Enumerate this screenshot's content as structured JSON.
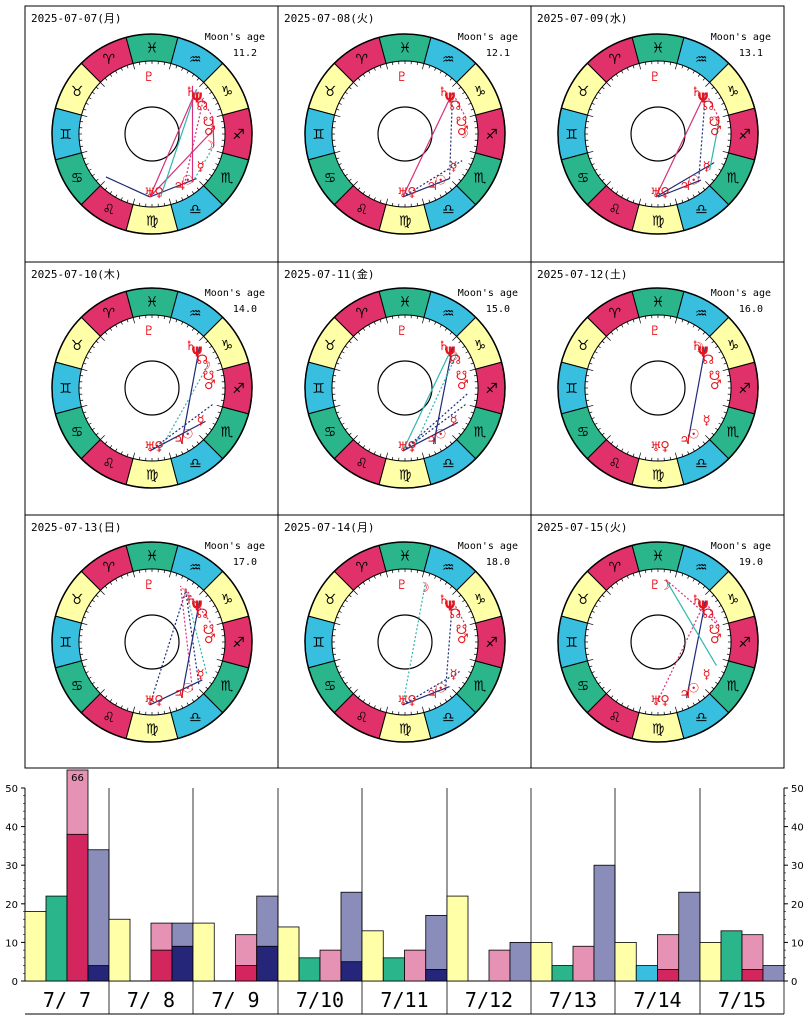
{
  "charts": [
    {
      "date": "2025-07-07(月)",
      "age_label": "Moon's age",
      "age": "11.2",
      "moon": 244,
      "aspects": [
        [
          163,
          118,
          "#1e2a7a",
          "solid"
        ],
        [
          163,
          210,
          "#2a2f80",
          "solid"
        ],
        [
          163,
          300,
          "#d6307a",
          "solid"
        ],
        [
          163,
          260,
          "#d6307a",
          "solid"
        ],
        [
          173,
          300,
          "#2fb6b0",
          "solid"
        ],
        [
          205,
          244,
          "#2fb6b0",
          "dash"
        ],
        [
          270,
          244,
          "#d6307a",
          "solid"
        ],
        [
          270,
          300,
          "#d6307a",
          "dash"
        ],
        [
          205,
          305,
          "#d6307a",
          "solid"
        ],
        [
          195,
          290,
          "#d6307a",
          "dash"
        ]
      ]
    },
    {
      "date": "2025-07-08(火)",
      "age_label": "Moon's age",
      "age": "12.1",
      "moon": 256,
      "aspects": [
        [
          163,
          296,
          "#d6307a",
          "solid"
        ],
        [
          210,
          296,
          "#1e2a7a",
          "dash"
        ],
        [
          163,
          210,
          "#1e2a7a",
          "solid"
        ],
        [
          163,
          230,
          "#1e2a7a",
          "dash"
        ],
        [
          270,
          296,
          "#d6307a",
          "dash"
        ]
      ]
    },
    {
      "date": "2025-07-09(水)",
      "age_label": "Moon's age",
      "age": "13.1",
      "moon": 268,
      "aspects": [
        [
          163,
          296,
          "#d6307a",
          "solid"
        ],
        [
          205,
          296,
          "#1e2a7a",
          "dash"
        ],
        [
          165,
          208,
          "#1e2a7a",
          "solid"
        ],
        [
          163,
          228,
          "#1e2a7a",
          "solid"
        ],
        [
          220,
          268,
          "#2fb6b0",
          "solid"
        ],
        [
          270,
          296,
          "#d6307a",
          "dash"
        ]
      ]
    },
    {
      "date": "2025-07-10(木)",
      "age_label": "Moon's age",
      "age": "14.0",
      "moon": 279,
      "aspects": [
        [
          193,
          296,
          "#1e2a7a",
          "solid"
        ],
        [
          172,
          279,
          "#2fb6b0",
          "dash"
        ],
        [
          163,
          223,
          "#1e2a7a",
          "solid"
        ],
        [
          163,
          240,
          "#1e2a7a",
          "dash"
        ]
      ]
    },
    {
      "date": "2025-07-11(金)",
      "age_label": "Moon's age",
      "age": "15.0",
      "moon": 289,
      "aspects": [
        [
          163,
          296,
          "#2fb6b0",
          "solid"
        ],
        [
          192,
          296,
          "#1e2a7a",
          "solid"
        ],
        [
          172,
          289,
          "#2fb6b0",
          "dash"
        ],
        [
          163,
          222,
          "#1e2a7a",
          "solid"
        ],
        [
          163,
          240,
          "#1e2a7a",
          "dash"
        ],
        [
          163,
          250,
          "#1e2a7a",
          "dash"
        ]
      ]
    },
    {
      "date": "2025-07-12(土)",
      "age_label": "Moon's age",
      "age": "16.0",
      "moon": 301,
      "aspects": [
        [
          193,
          296,
          "#1e2a7a",
          "solid"
        ]
      ]
    },
    {
      "date": "2025-07-13(日)",
      "age_label": "Moon's age",
      "age": "17.0",
      "moon": 313,
      "aspects": [
        [
          163,
          312,
          "#1e2a7a",
          "dash"
        ],
        [
          205,
          318,
          "#d6307a",
          "dash"
        ],
        [
          193,
          296,
          "#1e2a7a",
          "solid"
        ],
        [
          213,
          313,
          "#1e2a7a",
          "dash"
        ],
        [
          225,
          313,
          "#2fb6b0",
          "dash"
        ],
        [
          163,
          218,
          "#1e2a7a",
          "solid"
        ],
        [
          270,
          313,
          "#d6307a",
          "dash"
        ]
      ]
    },
    {
      "date": "2025-07-14(月)",
      "age_label": "Moon's age",
      "age": "18.0",
      "moon": 326,
      "aspects": [
        [
          163,
          326,
          "#2fb6b0",
          "dash"
        ],
        [
          205,
          296,
          "#1e2a7a",
          "dash"
        ],
        [
          163,
          210,
          "#1e2a7a",
          "solid"
        ],
        [
          163,
          228,
          "#1e2a7a",
          "dash"
        ],
        [
          270,
          296,
          "#d6307a",
          "dash"
        ]
      ]
    },
    {
      "date": "2025-07-15(火)",
      "age_label": "Moon's age",
      "age": "19.0",
      "moon": 338,
      "aspects": [
        [
          163,
          296,
          "#d6307a",
          "dash"
        ],
        [
          192,
          296,
          "#1e2a7a",
          "solid"
        ],
        [
          233,
          338,
          "#2fb6b0",
          "solid"
        ],
        [
          270,
          296,
          "#d6307a",
          "dash"
        ],
        [
          270,
          338,
          "#d6307a",
          "dash"
        ]
      ]
    }
  ],
  "zodiac_glyphs": [
    "♈",
    "♉",
    "♊",
    "♋",
    "♌",
    "♍",
    "♎",
    "♏",
    "♐",
    "♑",
    "♒",
    "♓"
  ],
  "sector_colors": [
    "#e0316a",
    "#ffffa8",
    "#38bfe0",
    "#2ab58a"
  ],
  "fixed_planets": [
    {
      "g": "☊",
      "lon": 285
    },
    {
      "g": "Ψ",
      "lon": 294
    },
    {
      "g": "♄",
      "lon": 303
    },
    {
      "g": "♇",
      "lon": 348
    },
    {
      "g": "♅",
      "lon": 163
    },
    {
      "g": "♀",
      "lon": 172
    },
    {
      "g": "♃",
      "lon": 193
    },
    {
      "g": "☉",
      "lon": 203
    },
    {
      "g": "☿",
      "lon": 222
    },
    {
      "g": "♂",
      "lon": 259
    },
    {
      "g": "☋",
      "lon": 268
    }
  ],
  "chart_data": {
    "type": "bar",
    "categories": [
      "7/ 7",
      "7/ 8",
      "7/ 9",
      "7/10",
      "7/11",
      "7/12",
      "7/13",
      "7/14",
      "7/15"
    ],
    "ylim": [
      0,
      50
    ],
    "yticks": [
      0,
      10,
      20,
      30,
      40,
      50
    ],
    "value_label": "66",
    "colors": {
      "yellow": "#ffffa8",
      "green": "#2ab58a",
      "pink_light": "#e692b4",
      "pink_dark": "#d4265e",
      "blue_light": "#8a8cba",
      "blue_dark": "#25257a",
      "cyan": "#38bfe0"
    },
    "days": [
      {
        "bars": [
          {
            "c": "yellow",
            "v": 18
          },
          {
            "c": "green",
            "v": 22
          },
          {
            "c": "pink",
            "total": 66,
            "dark": 38
          },
          {
            "c": "blue",
            "total": 34,
            "dark": 4
          }
        ]
      },
      {
        "bars": [
          {
            "c": "yellow",
            "v": 16
          },
          {
            "c": "none",
            "v": 0
          },
          {
            "c": "pink",
            "total": 15,
            "dark": 8
          },
          {
            "c": "blue",
            "total": 15,
            "dark": 9
          }
        ]
      },
      {
        "bars": [
          {
            "c": "yellow",
            "v": 15
          },
          {
            "c": "none",
            "v": 0
          },
          {
            "c": "pink",
            "total": 12,
            "dark": 4
          },
          {
            "c": "blue",
            "total": 22,
            "dark": 9
          }
        ]
      },
      {
        "bars": [
          {
            "c": "yellow",
            "v": 14
          },
          {
            "c": "green",
            "v": 6
          },
          {
            "c": "pink",
            "total": 8,
            "dark": 0
          },
          {
            "c": "blue",
            "total": 23,
            "dark": 5
          }
        ]
      },
      {
        "bars": [
          {
            "c": "yellow",
            "v": 13
          },
          {
            "c": "green",
            "v": 6
          },
          {
            "c": "pink",
            "total": 8,
            "dark": 0
          },
          {
            "c": "blue",
            "total": 17,
            "dark": 3
          }
        ]
      },
      {
        "bars": [
          {
            "c": "yellow",
            "v": 22
          },
          {
            "c": "none",
            "v": 0
          },
          {
            "c": "pink",
            "total": 8,
            "dark": 0
          },
          {
            "c": "blue",
            "total": 10,
            "dark": 0
          }
        ]
      },
      {
        "bars": [
          {
            "c": "yellow",
            "v": 10
          },
          {
            "c": "green",
            "v": 4
          },
          {
            "c": "pink",
            "total": 9,
            "dark": 0
          },
          {
            "c": "blue",
            "total": 30,
            "dark": 0
          }
        ]
      },
      {
        "bars": [
          {
            "c": "yellow",
            "v": 10
          },
          {
            "c": "cyan",
            "v": 4
          },
          {
            "c": "pink",
            "total": 12,
            "dark": 3
          },
          {
            "c": "blue",
            "total": 23,
            "dark": 0
          }
        ]
      },
      {
        "bars": [
          {
            "c": "yellow",
            "v": 10
          },
          {
            "c": "green",
            "v": 13
          },
          {
            "c": "pink",
            "total": 12,
            "dark": 3
          },
          {
            "c": "blue",
            "total": 4,
            "dark": 0
          }
        ]
      }
    ]
  }
}
